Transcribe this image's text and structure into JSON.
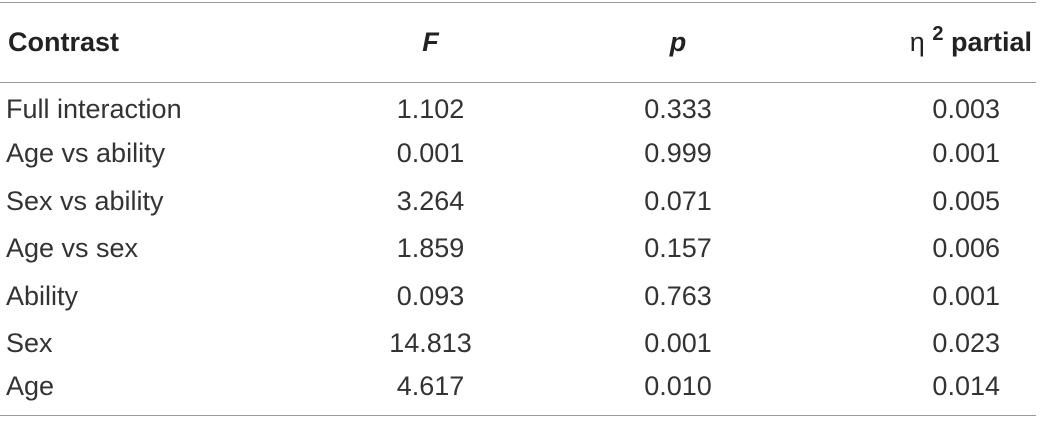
{
  "table": {
    "headers": {
      "contrast": "Contrast",
      "f": "F",
      "p": "p",
      "eta_symbol": "η",
      "eta_sup": "2",
      "eta_label": "partial"
    },
    "rows": [
      {
        "contrast": "Full interaction",
        "f": "1.102",
        "p": "0.333",
        "eta": "0.003"
      },
      {
        "contrast": "Age vs ability",
        "f": "0.001",
        "p": "0.999",
        "eta": "0.001"
      },
      {
        "contrast": "Sex vs ability",
        "f": "3.264",
        "p": "0.071",
        "eta": "0.005"
      },
      {
        "contrast": "Age vs sex",
        "f": "1.859",
        "p": "0.157",
        "eta": "0.006"
      },
      {
        "contrast": "Ability",
        "f": "0.093",
        "p": "0.763",
        "eta": "0.001"
      },
      {
        "contrast": "Sex",
        "f": "14.813",
        "p": "0.001",
        "eta": "0.023"
      },
      {
        "contrast": "Age",
        "f": "4.617",
        "p": "0.010",
        "eta": "0.014"
      }
    ]
  }
}
